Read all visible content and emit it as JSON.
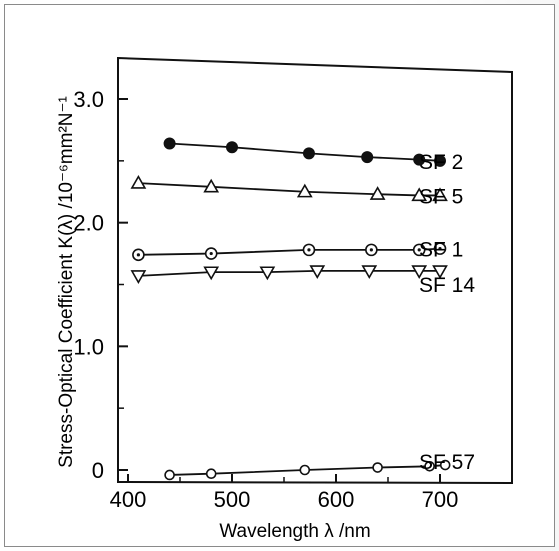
{
  "chart_data": {
    "type": "line",
    "xlabel": "Wavelength λ /nm",
    "ylabel": "Stress-Optical Coefficient K(λ) /10⁻⁶mm²N⁻¹",
    "xlim": [
      400,
      750
    ],
    "ylim": [
      0,
      3.3
    ],
    "x_ticks": [
      {
        "value": 400,
        "label": "400"
      },
      {
        "value": 500,
        "label": "500"
      },
      {
        "value": 600,
        "label": "600"
      },
      {
        "value": 700,
        "label": "700"
      }
    ],
    "y_ticks": [
      {
        "value": 0,
        "label": "0"
      },
      {
        "value": 1.0,
        "label": "1.0"
      },
      {
        "value": 2.0,
        "label": "2.0"
      },
      {
        "value": 3.0,
        "label": "3.0"
      }
    ],
    "grid": false,
    "series": [
      {
        "name": "SF 2",
        "marker": "filled-circle",
        "points": [
          [
            440,
            2.64
          ],
          [
            500,
            2.61
          ],
          [
            574,
            2.56
          ],
          [
            630,
            2.53
          ],
          [
            680,
            2.51
          ],
          [
            700,
            2.5
          ]
        ]
      },
      {
        "name": "SF 5",
        "marker": "triangle-up",
        "points": [
          [
            410,
            2.32
          ],
          [
            480,
            2.29
          ],
          [
            570,
            2.25
          ],
          [
            640,
            2.23
          ],
          [
            680,
            2.22
          ],
          [
            700,
            2.22
          ]
        ]
      },
      {
        "name": "SF 1",
        "marker": "dotted-circle",
        "points": [
          [
            410,
            1.74
          ],
          [
            480,
            1.75
          ],
          [
            574,
            1.78
          ],
          [
            634,
            1.78
          ],
          [
            680,
            1.78
          ],
          [
            700,
            1.79
          ]
        ]
      },
      {
        "name": "SF 14",
        "marker": "triangle-down",
        "points": [
          [
            410,
            1.57
          ],
          [
            480,
            1.6
          ],
          [
            534,
            1.6
          ],
          [
            582,
            1.61
          ],
          [
            632,
            1.61
          ],
          [
            680,
            1.61
          ],
          [
            700,
            1.61
          ]
        ]
      },
      {
        "name": "SF 57",
        "marker": "open-circle",
        "points": [
          [
            440,
            -0.04
          ],
          [
            480,
            -0.03
          ],
          [
            570,
            0.0
          ],
          [
            640,
            0.02
          ],
          [
            690,
            0.03
          ],
          [
            705,
            0.04
          ]
        ]
      }
    ]
  }
}
